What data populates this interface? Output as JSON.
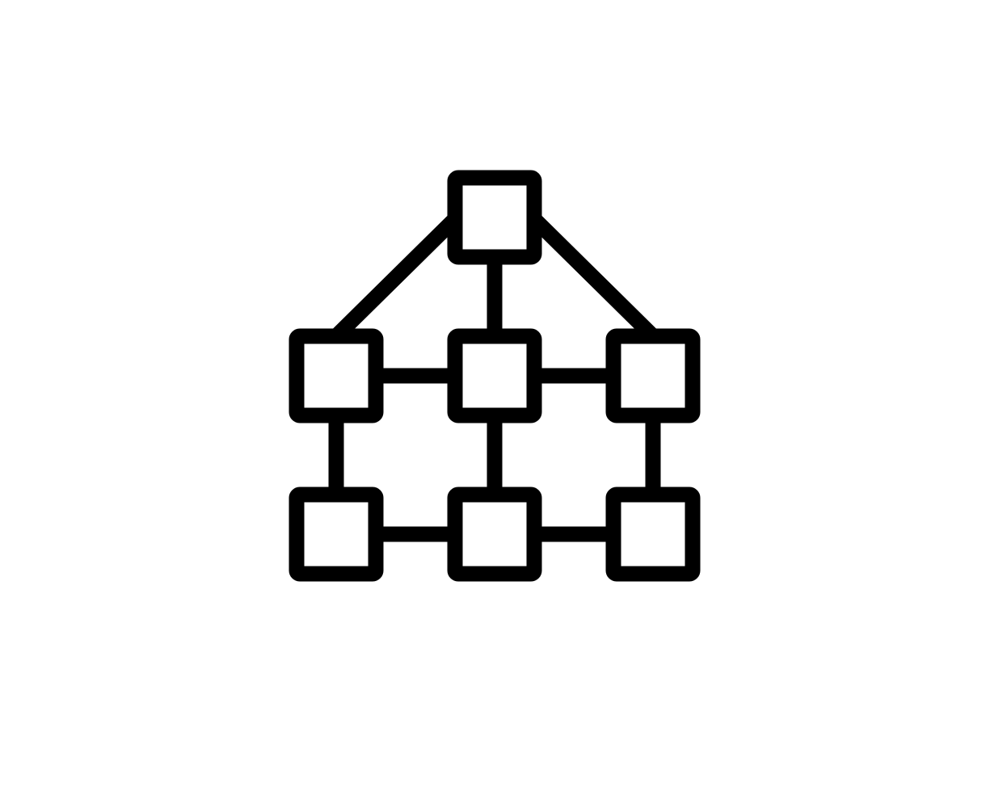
{
  "diagram": {
    "icon": "network-hierarchy-icon",
    "stroke_color": "#000000",
    "background_color": "#ffffff",
    "nodes": [
      {
        "id": "top"
      },
      {
        "id": "middle-left"
      },
      {
        "id": "middle-center"
      },
      {
        "id": "middle-right"
      },
      {
        "id": "bottom-left"
      },
      {
        "id": "bottom-center"
      },
      {
        "id": "bottom-right"
      }
    ],
    "edges": [
      {
        "from": "top",
        "to": "middle-left",
        "kind": "diagonal"
      },
      {
        "from": "top",
        "to": "middle-right",
        "kind": "diagonal"
      },
      {
        "from": "top",
        "to": "middle-center",
        "kind": "vertical"
      },
      {
        "from": "middle-left",
        "to": "middle-center",
        "kind": "horizontal"
      },
      {
        "from": "middle-center",
        "to": "middle-right",
        "kind": "horizontal"
      },
      {
        "from": "middle-left",
        "to": "bottom-left",
        "kind": "vertical"
      },
      {
        "from": "middle-center",
        "to": "bottom-center",
        "kind": "vertical"
      },
      {
        "from": "middle-right",
        "to": "bottom-right",
        "kind": "vertical"
      },
      {
        "from": "bottom-left",
        "to": "bottom-center",
        "kind": "horizontal"
      },
      {
        "from": "bottom-center",
        "to": "bottom-right",
        "kind": "horizontal"
      }
    ]
  }
}
